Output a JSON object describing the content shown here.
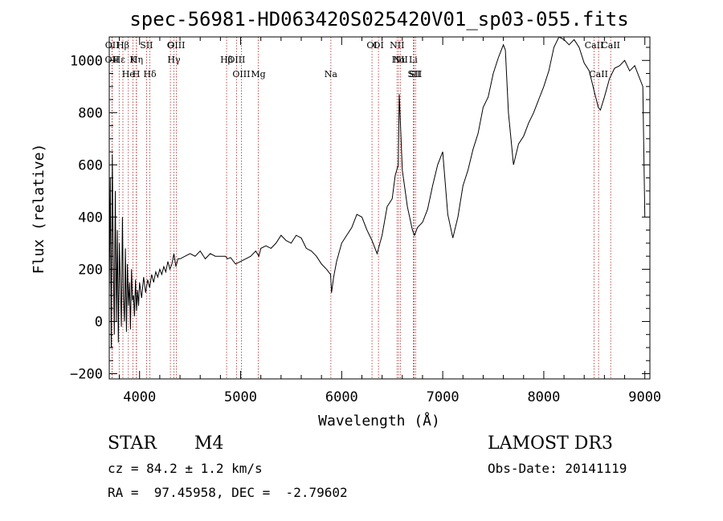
{
  "chart_data": {
    "type": "line",
    "title": "spec-56981-HD063420S025420V01_sp03-055.fits",
    "xlabel": "Wavelength (Å)",
    "ylabel": "Flux (relative)",
    "xlim": [
      3700,
      9050
    ],
    "ylim": [
      -220,
      1090
    ],
    "xticks": [
      "4000",
      "5000",
      "6000",
      "7000",
      "8000",
      "9000"
    ],
    "yticks": [
      "−200",
      "0",
      "200",
      "400",
      "600",
      "800",
      "1000"
    ],
    "grid": false,
    "legend": "none",
    "colors": {
      "spectrum": "#000000",
      "line_marker": "#b22222"
    },
    "series": [
      {
        "x": [
          3700,
          3710,
          3720,
          3730,
          3740,
          3750,
          3760,
          3770,
          3780,
          3790,
          3800,
          3810,
          3820,
          3830,
          3840,
          3850,
          3860,
          3870,
          3880,
          3890,
          3900,
          3910,
          3920,
          3930,
          3940,
          3950,
          3960,
          3970,
          3980,
          3990,
          4000,
          4020,
          4040,
          4060,
          4080,
          4100,
          4120,
          4140,
          4160,
          4180,
          4200,
          4220,
          4240,
          4260,
          4280,
          4300,
          4320,
          4340,
          4360,
          4380,
          4400,
          4450,
          4500,
          4550,
          4600,
          4650,
          4700,
          4750,
          4800,
          4850,
          4870,
          4900,
          4950,
          5000,
          5050,
          5100,
          5150,
          5180,
          5200,
          5250,
          5300,
          5350,
          5400,
          5450,
          5500,
          5550,
          5600,
          5650,
          5700,
          5750,
          5800,
          5850,
          5890,
          5900,
          5920,
          5950,
          6000,
          6050,
          6100,
          6150,
          6200,
          6250,
          6300,
          6350,
          6400,
          6450,
          6500,
          6530,
          6560,
          6570,
          6600,
          6650,
          6700,
          6720,
          6750,
          6800,
          6850,
          6900,
          6950,
          7000,
          7050,
          7100,
          7150,
          7200,
          7250,
          7300,
          7350,
          7400,
          7450,
          7500,
          7550,
          7600,
          7620,
          7650,
          7700,
          7750,
          7800,
          7850,
          7900,
          7950,
          8000,
          8050,
          8100,
          8150,
          8200,
          8250,
          8300,
          8350,
          8400,
          8450,
          8500,
          8540,
          8560,
          8600,
          8650,
          8700,
          8750,
          8800,
          8850,
          8900,
          8950,
          8980,
          9000
        ],
        "y": [
          100,
          550,
          -100,
          640,
          250,
          -50,
          500,
          0,
          350,
          -80,
          300,
          150,
          -20,
          400,
          100,
          0,
          280,
          -40,
          220,
          60,
          150,
          -30,
          200,
          80,
          100,
          20,
          160,
          40,
          120,
          60,
          150,
          90,
          170,
          110,
          160,
          130,
          180,
          150,
          190,
          170,
          200,
          180,
          210,
          190,
          230,
          200,
          220,
          260,
          210,
          240,
          240,
          250,
          260,
          250,
          270,
          240,
          260,
          250,
          250,
          250,
          240,
          245,
          220,
          230,
          240,
          250,
          270,
          250,
          280,
          290,
          280,
          300,
          330,
          310,
          300,
          330,
          320,
          280,
          270,
          250,
          220,
          200,
          180,
          110,
          170,
          230,
          300,
          330,
          360,
          410,
          400,
          350,
          310,
          260,
          330,
          440,
          470,
          560,
          600,
          870,
          580,
          440,
          350,
          330,
          360,
          380,
          430,
          520,
          600,
          650,
          410,
          320,
          400,
          520,
          580,
          660,
          720,
          820,
          860,
          950,
          1010,
          1060,
          1040,
          800,
          600,
          680,
          710,
          760,
          800,
          850,
          900,
          960,
          1050,
          1090,
          1080,
          1060,
          1080,
          1050,
          990,
          960,
          880,
          820,
          810,
          860,
          930,
          970,
          980,
          1000,
          960,
          980,
          930,
          900,
          400
        ]
      }
    ],
    "line_markers": [
      {
        "label": "Hβ",
        "wl": 3835
      },
      {
        "label": "K",
        "wl": 3934
      },
      {
        "label": "Hδ",
        "wl": 4102
      },
      {
        "label": "OIII",
        "wl": 4363
      },
      {
        "label": "OIII",
        "wl": 4959
      },
      {
        "label": "Na",
        "wl": 5893
      },
      {
        "label": "OI",
        "wl": 6300
      },
      {
        "label": "Hα",
        "wl": 6563
      },
      {
        "label": "SII",
        "wl": 6717
      },
      {
        "label": "CaII",
        "wl": 8498
      },
      {
        "label": "OII",
        "wl": 3727
      },
      {
        "label": "He",
        "wl": 3889
      },
      {
        "label": "SII",
        "wl": 4069
      },
      {
        "label": "Hγ",
        "wl": 4340
      },
      {
        "label": "OIII",
        "wl": 5007
      },
      {
        "label": "NII",
        "wl": 6548
      },
      {
        "label": "Li",
        "wl": 6708
      },
      {
        "label": "CaII",
        "wl": 8542
      },
      {
        "label": "OII",
        "wl": 3729
      },
      {
        "label": "Hη",
        "wl": 3970
      },
      {
        "label": "H",
        "wl": 3968
      },
      {
        "label": "G",
        "wl": 4305
      },
      {
        "label": "Hβ",
        "wl": 4861
      },
      {
        "label": "Mg",
        "wl": 5175
      },
      {
        "label": "OI",
        "wl": 6364
      },
      {
        "label": "NII",
        "wl": 6583
      },
      {
        "label": "SII",
        "wl": 6731
      },
      {
        "label": "CaII",
        "wl": 8662
      },
      {
        "label": "Hε",
        "wl": 3798
      }
    ]
  },
  "info": {
    "object_class": "STAR",
    "subclass": "M4",
    "survey": "LAMOST DR3",
    "cz": "cz = 84.2 ± 1.2 km/s",
    "obs_date": "Obs-Date: 20141119",
    "coords": "RA =  97.45958, DEC =  -2.79602"
  }
}
